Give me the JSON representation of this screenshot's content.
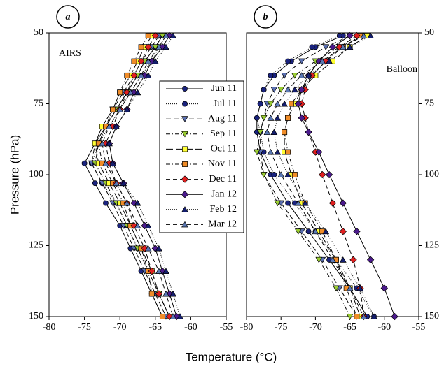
{
  "x_label": "Temperature (°C)",
  "y_label": "Pressure (hPa)",
  "chart_data": [
    {
      "type": "profile",
      "panel_label": "a",
      "title": "AIRS",
      "xlim": [
        -80,
        -55
      ],
      "xticks": [
        -80,
        -75,
        -70,
        -65,
        -60,
        -55
      ],
      "ylim": [
        50,
        150
      ],
      "y_reversed": true,
      "yticks": [
        50,
        75,
        100,
        125,
        150
      ],
      "pressure": [
        51,
        55,
        60,
        65,
        71,
        77,
        83,
        89,
        96,
        103,
        110,
        118,
        126,
        134,
        142,
        150
      ],
      "series": [
        {
          "name": "Jun 11",
          "color": "#1a237e",
          "marker": "circle",
          "dash": "none",
          "values": [
            -64,
            -65,
            -66.5,
            -67.5,
            -69,
            -70.5,
            -72,
            -73.5,
            -75,
            -73.5,
            -72,
            -70,
            -68.5,
            -67,
            -65.5,
            -64
          ]
        },
        {
          "name": "Jul 11",
          "color": "#1a237e",
          "marker": "circle",
          "dash": "1 2",
          "values": [
            -63.5,
            -64.5,
            -65.5,
            -67,
            -68.5,
            -70,
            -71.5,
            -73,
            -74,
            -72.5,
            -70.5,
            -69,
            -67.5,
            -66,
            -64.5,
            -63
          ]
        },
        {
          "name": "Aug 11",
          "color": "#5a6fb0",
          "marker": "triangle-down",
          "dash": "7 4",
          "values": [
            -64.5,
            -65.5,
            -67,
            -68,
            -69.5,
            -71,
            -72.5,
            -73.5,
            -74,
            -72.5,
            -71,
            -69.5,
            -68,
            -66.5,
            -65,
            -63.5
          ]
        },
        {
          "name": "Sep 11",
          "color": "#9acd32",
          "marker": "triangle-down",
          "dash": "6 3 1 3",
          "values": [
            -64,
            -65,
            -66.5,
            -67.5,
            -69,
            -70.5,
            -72,
            -73,
            -73.5,
            -72,
            -70.5,
            -69,
            -67.5,
            -66,
            -64.5,
            -63
          ]
        },
        {
          "name": "Oct 11",
          "color": "#ffff33",
          "marker": "square",
          "dash": "10 4",
          "values": [
            -65.5,
            -66.5,
            -67.5,
            -68.5,
            -70,
            -71,
            -72.5,
            -73.5,
            -73,
            -71.5,
            -70,
            -68.5,
            -67,
            -65.5,
            -64.5,
            -63
          ]
        },
        {
          "name": "Nov 11",
          "color": "#f08c28",
          "marker": "square",
          "dash": "6 3 1 3",
          "values": [
            -66,
            -67,
            -68,
            -69,
            -70,
            -71,
            -72,
            -73,
            -72.5,
            -71,
            -69.5,
            -68.5,
            -67,
            -66,
            -65.5,
            -64
          ]
        },
        {
          "name": "Dec 11",
          "color": "#e02020",
          "marker": "diamond",
          "dash": "6 4",
          "values": [
            -65,
            -66,
            -67,
            -68,
            -69,
            -70,
            -71,
            -72,
            -71.5,
            -70.5,
            -69,
            -68,
            -66.5,
            -65.5,
            -64.5,
            -63
          ]
        },
        {
          "name": "Jan 12",
          "color": "#4b1a8c",
          "marker": "diamond",
          "dash": "none",
          "values": [
            -63,
            -64,
            -65.5,
            -66.5,
            -68,
            -69,
            -70.5,
            -71.5,
            -71,
            -69.5,
            -68,
            -66.5,
            -65,
            -64,
            -63,
            -62
          ]
        },
        {
          "name": "Feb 12",
          "color": "#141e6e",
          "marker": "triangle-up",
          "dash": "1 2",
          "values": [
            -62.5,
            -63.5,
            -65,
            -66,
            -67.5,
            -69,
            -70.5,
            -71.5,
            -71,
            -69.5,
            -67.5,
            -66,
            -64.5,
            -63.5,
            -62.5,
            -61.5
          ]
        },
        {
          "name": "Mar 12",
          "color": "#5a78b4",
          "marker": "triangle-up",
          "dash": "6 4",
          "values": [
            -63.5,
            -64.5,
            -66,
            -67,
            -68.5,
            -70,
            -71.5,
            -72.5,
            -72,
            -70.5,
            -69,
            -67.5,
            -66,
            -64.5,
            -63.5,
            -62.5
          ]
        }
      ]
    },
    {
      "type": "profile",
      "panel_label": "b",
      "title": "Balloon",
      "xlim": [
        -80,
        -55
      ],
      "xticks": [
        -80,
        -75,
        -70,
        -65,
        -60,
        -55
      ],
      "ylim": [
        50,
        150
      ],
      "y_reversed": true,
      "yticks": [
        50,
        75,
        100,
        125,
        150
      ],
      "pressure": [
        51,
        55,
        60,
        65,
        70,
        75,
        80,
        85,
        92,
        100,
        110,
        120,
        130,
        140,
        150
      ],
      "series": [
        {
          "values": [
            -66,
            -70,
            -73.5,
            -76,
            -77.5,
            -78,
            -78.5,
            -78.5,
            -78,
            -76.5,
            -74,
            -71,
            -68,
            -65,
            -62.5
          ]
        },
        {
          "values": [
            -66.5,
            -70.5,
            -74,
            -76.5,
            -77.5,
            -78,
            -78.5,
            -78,
            -77.5,
            -76,
            -73,
            -70,
            -67,
            -64,
            -61.5
          ]
        },
        {
          "values": [
            -65,
            -68.5,
            -72,
            -74.5,
            -76,
            -77,
            -77.5,
            -78,
            -78,
            -77.5,
            -75,
            -72,
            -69,
            -66.5,
            -64
          ]
        },
        {
          "values": [
            -63,
            -66.5,
            -70,
            -73,
            -75,
            -76.5,
            -77.5,
            -78,
            -78.5,
            -77.5,
            -75.5,
            -72.5,
            -69.5,
            -67,
            -65
          ]
        },
        {
          "values": [
            -62.5,
            -65,
            -67.5,
            -70,
            -72,
            -73,
            -74,
            -74.5,
            -74.5,
            -73.5,
            -72,
            -69.5,
            -67,
            -65,
            -63.5
          ]
        },
        {
          "values": [
            -63.5,
            -66,
            -68.5,
            -70.5,
            -72,
            -73.5,
            -74,
            -74.5,
            -74,
            -73,
            -71.5,
            -69,
            -67,
            -65.5,
            -64
          ]
        },
        {
          "values": [
            -64,
            -66.5,
            -68.5,
            -70.5,
            -71.5,
            -72,
            -71.5,
            -71,
            -70,
            -69,
            -67.5,
            -66,
            -64.5,
            -63.5,
            -63
          ]
        },
        {
          "values": [
            -65,
            -67.5,
            -69.5,
            -71,
            -72,
            -72.5,
            -72,
            -71,
            -69.5,
            -68,
            -66,
            -64,
            -62,
            -60,
            -58.5
          ]
        },
        {
          "values": [
            -62,
            -65,
            -68,
            -71,
            -73,
            -74.5,
            -75.5,
            -76,
            -75.5,
            -74,
            -71.5,
            -68.5,
            -66,
            -63.5,
            -61.5
          ]
        },
        {
          "values": [
            -63,
            -66,
            -69,
            -72,
            -74,
            -75.5,
            -76.5,
            -77,
            -76.5,
            -75,
            -72.5,
            -70,
            -67.5,
            -65,
            -63
          ]
        }
      ]
    }
  ]
}
